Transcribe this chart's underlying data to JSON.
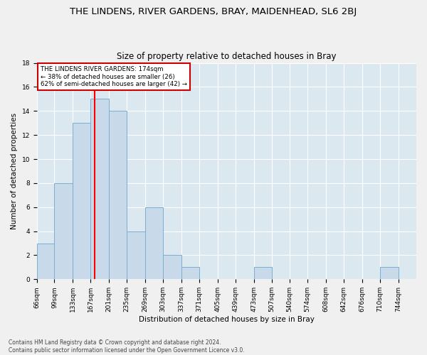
{
  "title": "THE LINDENS, RIVER GARDENS, BRAY, MAIDENHEAD, SL6 2BJ",
  "subtitle": "Size of property relative to detached houses in Bray",
  "xlabel": "Distribution of detached houses by size in Bray",
  "ylabel": "Number of detached properties",
  "bin_labels": [
    "66sqm",
    "99sqm",
    "133sqm",
    "167sqm",
    "201sqm",
    "235sqm",
    "269sqm",
    "303sqm",
    "337sqm",
    "371sqm",
    "405sqm",
    "439sqm",
    "473sqm",
    "507sqm",
    "540sqm",
    "574sqm",
    "608sqm",
    "642sqm",
    "676sqm",
    "710sqm",
    "744sqm"
  ],
  "bin_edges": [
    66,
    99,
    133,
    167,
    201,
    235,
    269,
    303,
    337,
    371,
    405,
    439,
    473,
    507,
    540,
    574,
    608,
    642,
    676,
    710,
    744,
    778
  ],
  "counts": [
    3,
    8,
    13,
    15,
    14,
    4,
    6,
    2,
    1,
    0,
    0,
    0,
    1,
    0,
    0,
    0,
    0,
    0,
    0,
    1,
    0
  ],
  "bar_color": "#c8d9ea",
  "bar_edge_color": "#7aaed0",
  "red_line_x": 174,
  "annotation_text": "THE LINDENS RIVER GARDENS: 174sqm\n← 38% of detached houses are smaller (26)\n62% of semi-detached houses are larger (42) →",
  "annotation_box_color": "#ffffff",
  "annotation_box_edge_color": "#cc0000",
  "ylim": [
    0,
    18
  ],
  "yticks": [
    0,
    2,
    4,
    6,
    8,
    10,
    12,
    14,
    16,
    18
  ],
  "footer_text": "Contains HM Land Registry data © Crown copyright and database right 2024.\nContains public sector information licensed under the Open Government Licence v3.0.",
  "fig_bg_color": "#f0f0f0",
  "plot_bg_color": "#dce8f0",
  "grid_color": "#ffffff",
  "title_fontsize": 9.5,
  "subtitle_fontsize": 8.5,
  "axis_label_fontsize": 7.5,
  "tick_fontsize": 6.5,
  "footer_fontsize": 5.5
}
